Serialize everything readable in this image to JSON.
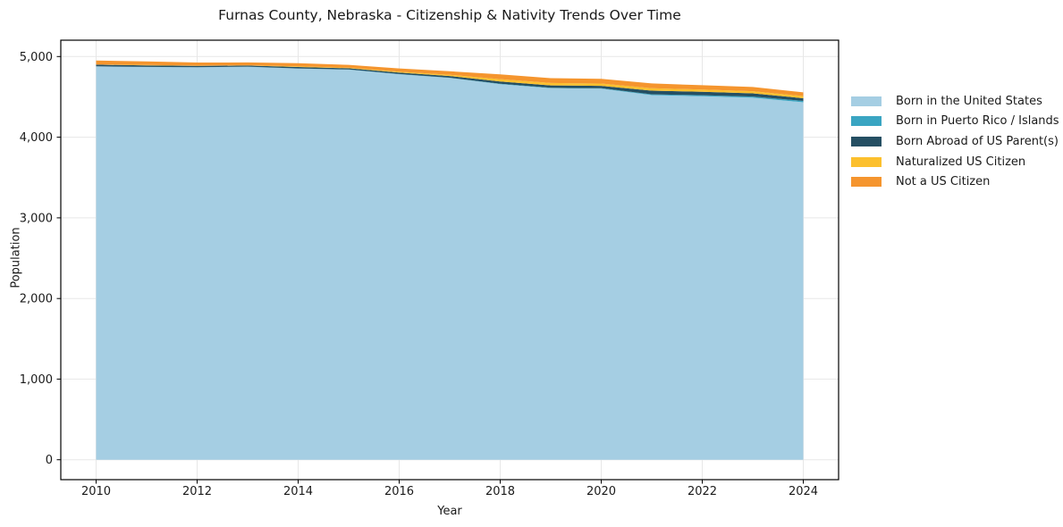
{
  "title": "Furnas County, Nebraska - Citizenship & Nativity Trends Over Time",
  "chart_data": {
    "type": "area",
    "stacked": true,
    "title": "Furnas County, Nebraska - Citizenship & Nativity Trends Over Time",
    "xlabel": "Year",
    "ylabel": "Population",
    "x": [
      2010,
      2011,
      2012,
      2013,
      2014,
      2015,
      2016,
      2017,
      2018,
      2019,
      2020,
      2021,
      2022,
      2023,
      2024
    ],
    "series": [
      {
        "name": "Born in the United States",
        "color": "#a5cee3",
        "values": [
          4878,
          4871,
          4868,
          4874,
          4851,
          4838,
          4781,
          4735,
          4658,
          4608,
          4601,
          4522,
          4509,
          4490,
          4433
        ]
      },
      {
        "name": "Born in Puerto Rico / Islands",
        "color": "#3aa5c2",
        "values": [
          1,
          1,
          1,
          1,
          2,
          2,
          2,
          3,
          5,
          5,
          6,
          10,
          12,
          14,
          17
        ]
      },
      {
        "name": "Born Abroad of US Parent(s)",
        "color": "#254f63",
        "values": [
          20,
          19,
          15,
          13,
          18,
          15,
          18,
          21,
          28,
          30,
          30,
          45,
          42,
          40,
          33
        ]
      },
      {
        "name": "Naturalized US Citizen",
        "color": "#fcc02e",
        "values": [
          3,
          4,
          3,
          4,
          7,
          7,
          12,
          15,
          29,
          29,
          29,
          30,
          27,
          27,
          28
        ]
      },
      {
        "name": "Not a US Citizen",
        "color": "#f5952e",
        "values": [
          48,
          45,
          39,
          35,
          39,
          35,
          40,
          44,
          60,
          60,
          59,
          60,
          55,
          52,
          45
        ]
      }
    ],
    "xlim": [
      2009.3,
      2024.7
    ],
    "ylim": [
      -247,
      5203
    ],
    "xticks": {
      "values": [
        2010,
        2012,
        2014,
        2016,
        2018,
        2020,
        2022,
        2024
      ],
      "labels": [
        "2010",
        "2012",
        "2014",
        "2016",
        "2018",
        "2020",
        "2022",
        "2024"
      ]
    },
    "yticks": {
      "values": [
        0,
        1000,
        2000,
        3000,
        4000,
        5000
      ],
      "labels": [
        "0",
        "1,000",
        "2,000",
        "3,000",
        "4,000",
        "5,000"
      ]
    },
    "grid": true,
    "grid_color": "#e7e7e7",
    "frame_color": "#000000",
    "legend_position": "right-outside"
  }
}
